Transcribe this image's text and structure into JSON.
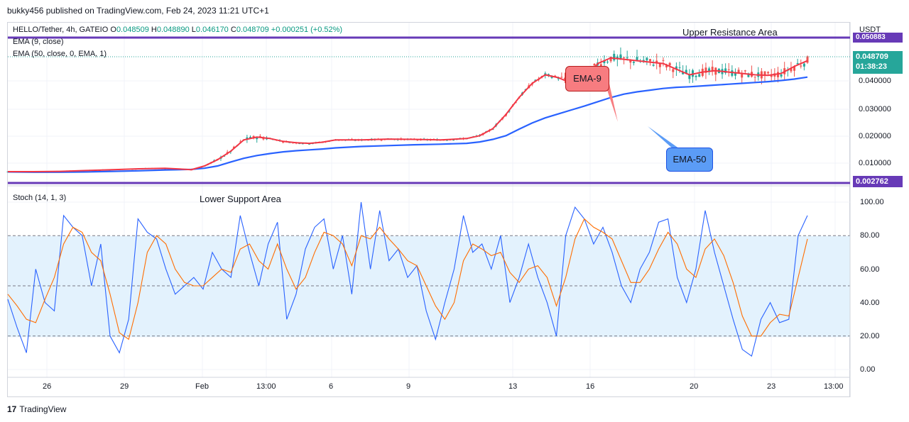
{
  "publisher": "bukky456 published on TradingView.com, Feb 24, 2023 11:21 UTC+1",
  "legend": {
    "symbol": "HELLO/Tether, 4h, GATEIO",
    "open_label": "O",
    "open": "0.048509",
    "high_label": "H",
    "high": "0.048890",
    "low_label": "L",
    "low": "0.046170",
    "close_label": "C",
    "close": "0.048709",
    "change": "+0.000251 (+0.52%)",
    "ema9": "EMA (9, close)",
    "ema50": "EMA (50, close, 0, EMA, 1)",
    "stoch": "Stoch (14, 1, 3)"
  },
  "price_axis": {
    "currency": "USDT",
    "ticks": [
      "0.040000",
      "0.030000",
      "0.020000",
      "0.010000"
    ],
    "resistance_value": "0.050883",
    "last_price": "0.048709",
    "countdown": "01:38:23",
    "support_value": "0.002762"
  },
  "stoch_axis": {
    "ticks": [
      "100.00",
      "80.00",
      "60.00",
      "40.00",
      "20.00",
      "0.00"
    ]
  },
  "time_axis": [
    "26",
    "29",
    "Feb",
    "13:00",
    "6",
    "9",
    "13",
    "16",
    "20",
    "23",
    "13:00"
  ],
  "annotations": {
    "upper": "Upper Resistance Area",
    "lower": "Lower Support Area",
    "ema9_callout": "EMA-9",
    "ema50_callout": "EMA-50"
  },
  "colors": {
    "up": "#26a69a",
    "down": "#ef5350",
    "ema9": "#f23645",
    "ema50": "#2962ff",
    "level_line": "#673ab7",
    "stoch_k": "#2962ff",
    "stoch_d": "#ff6d00",
    "band": "#e3f2fd"
  },
  "footer": "TradingView",
  "chart_data": [
    {
      "type": "line",
      "title": "HELLO/Tether, 4h, GATEIO",
      "ylim": [
        0,
        0.055
      ],
      "horizontal_levels": [
        {
          "name": "Upper Resistance Area",
          "value": 0.050883
        },
        {
          "name": "Lower Support Area",
          "value": 0.002762
        }
      ],
      "x": [
        0,
        4,
        8,
        12,
        16,
        20,
        24,
        28,
        30,
        32,
        34,
        36,
        38,
        40,
        42,
        44,
        46,
        48,
        50,
        54,
        58,
        62,
        66,
        70,
        72,
        74,
        76,
        78,
        80,
        82,
        84,
        86,
        88,
        90,
        92,
        94,
        96,
        98,
        100,
        102,
        104,
        106,
        108,
        110,
        112,
        114,
        116,
        118,
        120,
        122
      ],
      "series": [
        {
          "name": "EMA (9, close)",
          "values": [
            0.0078,
            0.0078,
            0.0079,
            0.0082,
            0.0085,
            0.0088,
            0.009,
            0.0085,
            0.0098,
            0.012,
            0.015,
            0.019,
            0.02,
            0.0195,
            0.0185,
            0.018,
            0.0178,
            0.0182,
            0.019,
            0.019,
            0.0193,
            0.0192,
            0.019,
            0.0195,
            0.0205,
            0.023,
            0.028,
            0.034,
            0.039,
            0.042,
            0.041,
            0.039,
            0.04,
            0.046,
            0.048,
            0.0475,
            0.047,
            0.0465,
            0.046,
            0.044,
            0.042,
            0.043,
            0.0435,
            0.043,
            0.0425,
            0.042,
            0.0418,
            0.0425,
            0.045,
            0.047
          ]
        },
        {
          "name": "EMA (50, close, 0, EMA, 1)",
          "values": [
            0.0077,
            0.0076,
            0.0076,
            0.0077,
            0.0079,
            0.0081,
            0.0084,
            0.0086,
            0.009,
            0.0098,
            0.0112,
            0.0125,
            0.0135,
            0.0142,
            0.0148,
            0.0152,
            0.0155,
            0.0158,
            0.0162,
            0.0167,
            0.017,
            0.0173,
            0.0175,
            0.0178,
            0.0183,
            0.0192,
            0.0205,
            0.0228,
            0.025,
            0.0268,
            0.0282,
            0.0296,
            0.031,
            0.0325,
            0.034,
            0.0352,
            0.036,
            0.0366,
            0.0372,
            0.0376,
            0.0378,
            0.0381,
            0.0384,
            0.0387,
            0.039,
            0.0393,
            0.0396,
            0.04,
            0.0405,
            0.0412
          ]
        }
      ]
    },
    {
      "type": "line",
      "title": "Stoch (14, 1, 3)",
      "ylim": [
        0,
        100
      ],
      "reference_lines": [
        80,
        50,
        20
      ],
      "series": [
        {
          "name": "%K",
          "values": [
            42,
            25,
            10,
            60,
            40,
            35,
            92,
            85,
            80,
            50,
            75,
            20,
            10,
            30,
            90,
            82,
            78,
            60,
            45,
            50,
            55,
            48,
            70,
            60,
            55,
            92,
            70,
            50,
            75,
            88,
            30,
            45,
            72,
            85,
            90,
            60,
            80,
            45,
            100,
            60,
            95,
            65,
            72,
            55,
            62,
            35,
            18,
            40,
            60,
            92,
            70,
            75,
            60,
            80,
            40,
            55,
            75,
            55,
            40,
            20,
            80,
            97,
            90,
            75,
            85,
            70,
            50,
            40,
            60,
            70,
            88,
            90,
            55,
            40,
            60,
            95,
            70,
            50,
            30,
            12,
            8,
            30,
            40,
            28,
            30,
            80,
            92
          ]
        },
        {
          "name": "%D",
          "values": [
            45,
            38,
            30,
            28,
            42,
            55,
            75,
            85,
            82,
            70,
            65,
            45,
            22,
            18,
            40,
            70,
            80,
            75,
            60,
            52,
            50,
            50,
            55,
            60,
            58,
            72,
            75,
            65,
            60,
            75,
            60,
            48,
            55,
            70,
            82,
            80,
            75,
            62,
            80,
            78,
            85,
            78,
            72,
            65,
            62,
            50,
            38,
            30,
            40,
            65,
            75,
            72,
            68,
            70,
            58,
            52,
            60,
            62,
            55,
            38,
            55,
            78,
            90,
            85,
            82,
            78,
            65,
            52,
            52,
            60,
            72,
            82,
            75,
            60,
            55,
            72,
            78,
            68,
            52,
            32,
            20,
            20,
            28,
            33,
            32,
            55,
            78
          ]
        }
      ]
    }
  ]
}
